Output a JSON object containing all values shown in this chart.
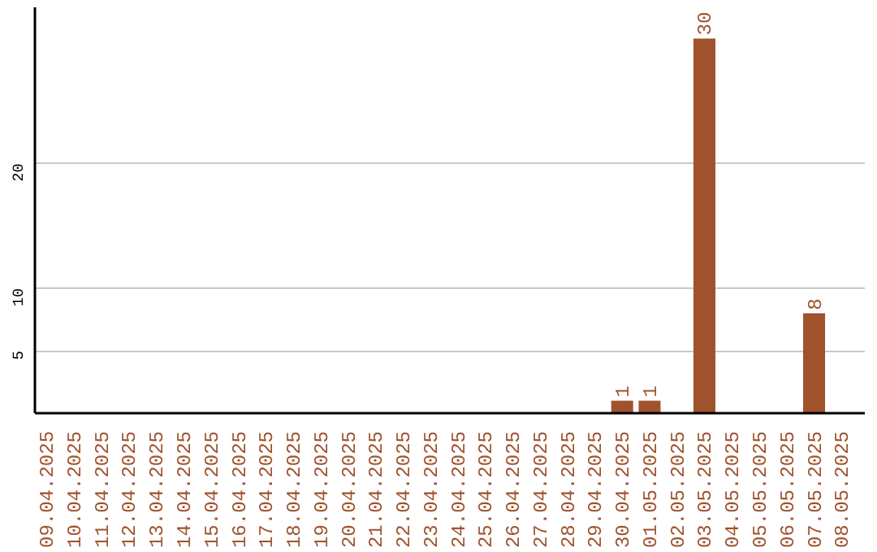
{
  "chart_data": {
    "type": "bar",
    "categories": [
      "09.04.2025",
      "10.04.2025",
      "11.04.2025",
      "12.04.2025",
      "13.04.2025",
      "14.04.2025",
      "15.04.2025",
      "16.04.2025",
      "17.04.2025",
      "18.04.2025",
      "19.04.2025",
      "20.04.2025",
      "21.04.2025",
      "22.04.2025",
      "23.04.2025",
      "24.04.2025",
      "25.04.2025",
      "26.04.2025",
      "27.04.2025",
      "28.04.2025",
      "29.04.2025",
      "30.04.2025",
      "01.05.2025",
      "02.05.2025",
      "03.05.2025",
      "04.05.2025",
      "05.05.2025",
      "06.05.2025",
      "07.05.2025",
      "08.05.2025"
    ],
    "values": [
      0,
      0,
      0,
      0,
      0,
      0,
      0,
      0,
      0,
      0,
      0,
      0,
      0,
      0,
      0,
      0,
      0,
      0,
      0,
      0,
      0,
      1,
      1,
      0,
      30,
      0,
      0,
      0,
      8,
      0
    ],
    "value_labels": [
      null,
      null,
      null,
      null,
      null,
      null,
      null,
      null,
      null,
      null,
      null,
      null,
      null,
      null,
      null,
      null,
      null,
      null,
      null,
      null,
      null,
      "1",
      "1",
      null,
      "30",
      null,
      null,
      null,
      "8",
      null
    ],
    "color": "#a0522d",
    "ylim": [
      0,
      32.5
    ],
    "yticks": [
      5,
      10,
      20
    ],
    "grid": "y"
  }
}
